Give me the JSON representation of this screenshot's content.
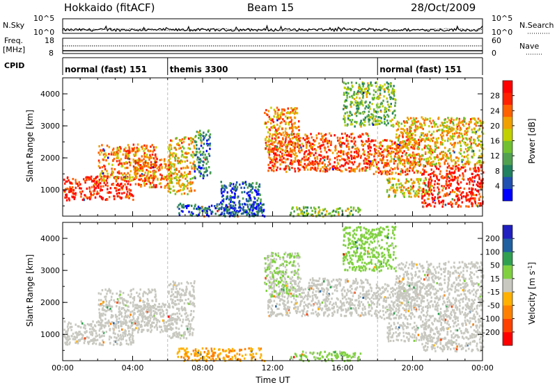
{
  "header": {
    "station": "Hokkaido (fitACF)",
    "beam": "Beam 15",
    "date": "28/Oct/2009"
  },
  "top_panels": {
    "nsky_label": "N.Sky",
    "nsky_ticks": [
      "10^5",
      "10^0"
    ],
    "nsearch_label": "N.Search",
    "nsearch_ticks_right": [
      "10^5",
      "10^0"
    ],
    "freq_label": "Freq.",
    "freq_unit": "[MHz]",
    "freq_ticks": [
      "18",
      "8"
    ],
    "nave_label": "Nave",
    "nave_ticks": [
      "60",
      "0"
    ],
    "cpid_label": "CPID",
    "cpid_segments": [
      {
        "label": "normal (fast) 151",
        "start_hour": 0,
        "end_hour": 6
      },
      {
        "label": "themis 3300",
        "start_hour": 6,
        "end_hour": 18
      },
      {
        "label": "normal (fast) 151",
        "start_hour": 18,
        "end_hour": 24
      }
    ]
  },
  "chart_data": [
    {
      "type": "heatmap",
      "name": "power",
      "ylabel": "Slant Range [km]",
      "xlabel": "",
      "xlim": [
        0,
        24
      ],
      "ylim": [
        180,
        4500
      ],
      "yticks": [
        1000,
        2000,
        3000,
        4000
      ],
      "colorbar": {
        "label": "Power [dB]",
        "ticks": [
          "28",
          "24",
          "20",
          "16",
          "12",
          "8",
          "4"
        ],
        "range": [
          0,
          32
        ],
        "colors": [
          "#0000ff",
          "#2050b0",
          "#208060",
          "#50a050",
          "#70c030",
          "#c0d000",
          "#f0a000",
          "#ff6000",
          "#ff2000",
          "#ff0000"
        ]
      },
      "cpid_boundaries_hours": [
        6,
        18
      ],
      "scatter_regions": [
        {
          "t0": 0.0,
          "t1": 4.0,
          "r0": 700,
          "r1": 1450,
          "level": 28
        },
        {
          "t0": 2.0,
          "t1": 5.3,
          "r0": 1300,
          "r1": 2450,
          "level": 22
        },
        {
          "t0": 4.0,
          "t1": 6.2,
          "r0": 1100,
          "r1": 2000,
          "level": 24
        },
        {
          "t0": 6.0,
          "t1": 7.5,
          "r0": 900,
          "r1": 2700,
          "level": 20
        },
        {
          "t0": 7.5,
          "t1": 8.4,
          "r0": 1400,
          "r1": 2900,
          "level": 8
        },
        {
          "t0": 6.5,
          "t1": 11.5,
          "r0": 200,
          "r1": 600,
          "level": 6
        },
        {
          "t0": 9.0,
          "t1": 11.3,
          "r0": 200,
          "r1": 1300,
          "level": 6
        },
        {
          "t0": 11.7,
          "t1": 17.5,
          "r0": 1600,
          "r1": 2800,
          "level": 26
        },
        {
          "t0": 11.5,
          "t1": 13.5,
          "r0": 2200,
          "r1": 3600,
          "level": 22
        },
        {
          "t0": 13.0,
          "t1": 17.0,
          "r0": 200,
          "r1": 500,
          "level": 14
        },
        {
          "t0": 17.5,
          "t1": 20.5,
          "r0": 1500,
          "r1": 2600,
          "level": 24
        },
        {
          "t0": 18.5,
          "t1": 21.0,
          "r0": 800,
          "r1": 1400,
          "level": 18
        },
        {
          "t0": 20.5,
          "t1": 24.0,
          "r0": 500,
          "r1": 1800,
          "level": 28
        },
        {
          "t0": 19.0,
          "t1": 24.0,
          "r0": 1800,
          "r1": 3300,
          "level": 20
        },
        {
          "t0": 16.0,
          "t1": 19.0,
          "r0": 3000,
          "r1": 4400,
          "level": 14
        }
      ]
    },
    {
      "type": "heatmap",
      "name": "velocity",
      "ylabel": "Slant Range [km]",
      "xlabel": "Time UT",
      "xlim": [
        0,
        24
      ],
      "ylim": [
        180,
        4500
      ],
      "yticks": [
        1000,
        2000,
        3000,
        4000
      ],
      "xticks": [
        "00:00",
        "04:00",
        "08:00",
        "12:00",
        "16:00",
        "20:00",
        "00:00"
      ],
      "colorbar": {
        "label": "Velocity [m s^-1]",
        "ticks": [
          "200",
          "100",
          "50",
          "15",
          "-15",
          "-50",
          "-100",
          "-200"
        ],
        "range": [
          -250,
          250
        ],
        "colors": [
          "#ff0000",
          "#ff4000",
          "#ff8000",
          "#ffb000",
          "#c8c8c0",
          "#80d040",
          "#30a050",
          "#2060a0",
          "#2020c0"
        ]
      },
      "cpid_boundaries_hours": [
        6,
        18
      ],
      "scatter_regions": [
        {
          "t0": 0.0,
          "t1": 4.0,
          "r0": 700,
          "r1": 1450,
          "level": 0
        },
        {
          "t0": 2.0,
          "t1": 5.3,
          "r0": 1300,
          "r1": 2450,
          "level": 0
        },
        {
          "t0": 4.0,
          "t1": 6.2,
          "r0": 1100,
          "r1": 2000,
          "level": 0
        },
        {
          "t0": 6.0,
          "t1": 7.5,
          "r0": 900,
          "r1": 2700,
          "level": 0
        },
        {
          "t0": 6.5,
          "t1": 11.5,
          "r0": 200,
          "r1": 600,
          "level": -80
        },
        {
          "t0": 11.7,
          "t1": 17.5,
          "r0": 1600,
          "r1": 2800,
          "level": 0
        },
        {
          "t0": 11.5,
          "t1": 13.5,
          "r0": 2200,
          "r1": 3600,
          "level": 30
        },
        {
          "t0": 13.0,
          "t1": 17.0,
          "r0": 200,
          "r1": 500,
          "level": 40
        },
        {
          "t0": 17.5,
          "t1": 20.5,
          "r0": 1500,
          "r1": 2600,
          "level": 0
        },
        {
          "t0": 18.5,
          "t1": 21.0,
          "r0": 800,
          "r1": 1400,
          "level": 0
        },
        {
          "t0": 20.5,
          "t1": 24.0,
          "r0": 500,
          "r1": 1800,
          "level": 0
        },
        {
          "t0": 19.0,
          "t1": 24.0,
          "r0": 1800,
          "r1": 3300,
          "level": 0
        },
        {
          "t0": 16.0,
          "t1": 19.0,
          "r0": 3000,
          "r1": 4400,
          "level": 60
        }
      ]
    }
  ]
}
